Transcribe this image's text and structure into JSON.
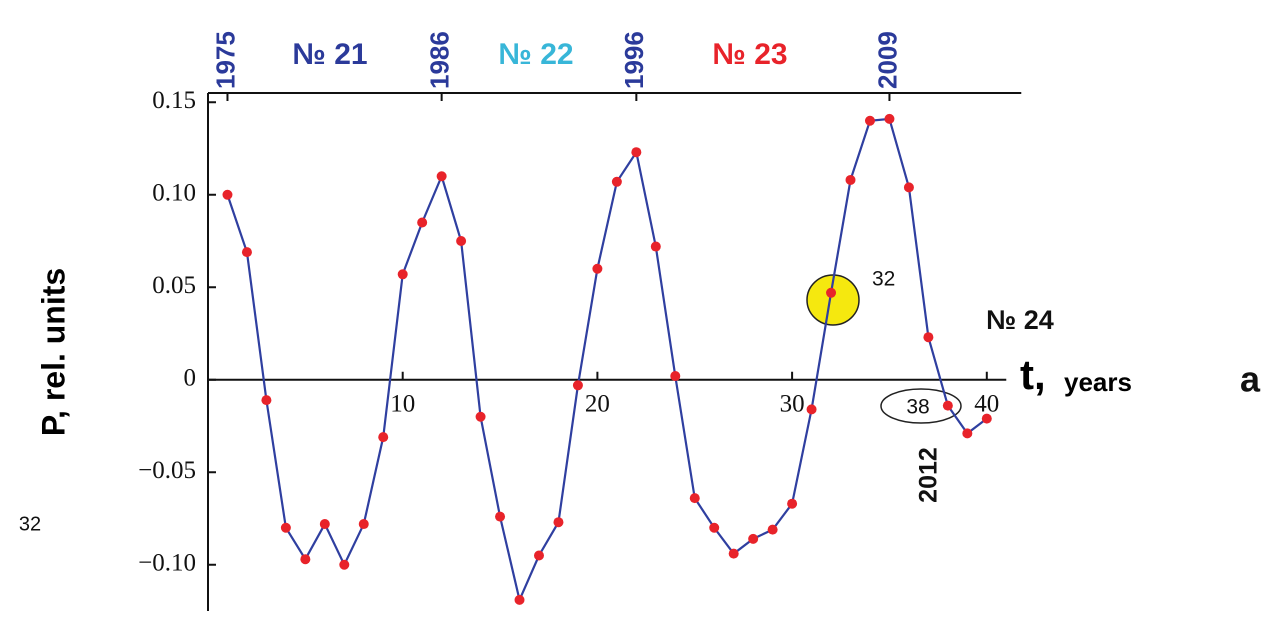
{
  "chart_data": {
    "type": "line",
    "x": [
      1,
      2,
      3,
      4,
      5,
      6,
      7,
      8,
      9,
      10,
      11,
      12,
      13,
      14,
      15,
      16,
      17,
      18,
      19,
      20,
      21,
      22,
      23,
      24,
      25,
      26,
      27,
      28,
      29,
      30,
      31,
      32,
      33,
      34,
      35,
      36,
      37,
      38,
      39,
      40
    ],
    "values": [
      0.1,
      0.069,
      -0.011,
      -0.08,
      -0.097,
      -0.078,
      -0.1,
      -0.078,
      -0.031,
      0.057,
      0.085,
      0.11,
      0.075,
      -0.02,
      -0.074,
      -0.119,
      -0.095,
      -0.077,
      -0.003,
      0.06,
      0.107,
      0.123,
      0.072,
      0.002,
      -0.064,
      -0.08,
      -0.094,
      -0.086,
      -0.081,
      -0.067,
      -0.016,
      0.047,
      0.108,
      0.14,
      0.141,
      0.104,
      0.023,
      -0.014,
      -0.029,
      -0.021
    ],
    "color": "#2f3fa0",
    "marker_color": "#e8232a",
    "xlim": [
      0,
      41
    ],
    "xticks": [
      10,
      20,
      30,
      40
    ],
    "ylim": [
      -0.125,
      0.155
    ],
    "yticks": [
      {
        "value": -0.1,
        "label": "−0.10"
      },
      {
        "value": -0.05,
        "label": "−0.05"
      },
      0,
      0.05,
      {
        "value": 0.1,
        "label": "0.10"
      },
      0.15
    ],
    "top_xticks": [
      {
        "value": 1,
        "label": "1975"
      },
      {
        "value": 12,
        "label": "1986"
      },
      {
        "value": 22,
        "label": "1996"
      },
      {
        "value": 35,
        "label": "2009"
      }
    ],
    "top_tick_color": "#2b3a9a",
    "xlabel": "t,",
    "xlabel_unit": "years",
    "ylabel": "P, rel. units",
    "annotations": [
      {
        "text": "№ 21",
        "color": "#2b3a9a"
      },
      {
        "text": "№ 22",
        "color": "#38b6d8"
      },
      {
        "text": "№ 23",
        "color": "#e8232a"
      },
      {
        "text": "№ 24",
        "color": "#111111"
      },
      {
        "text": "32",
        "color": "#111111"
      },
      {
        "text": "38",
        "color": "#111111"
      },
      {
        "text": "2012",
        "color": "#111111"
      },
      {
        "text": "a",
        "color": "#111111"
      },
      {
        "text": "32",
        "color": "#111111"
      }
    ]
  }
}
